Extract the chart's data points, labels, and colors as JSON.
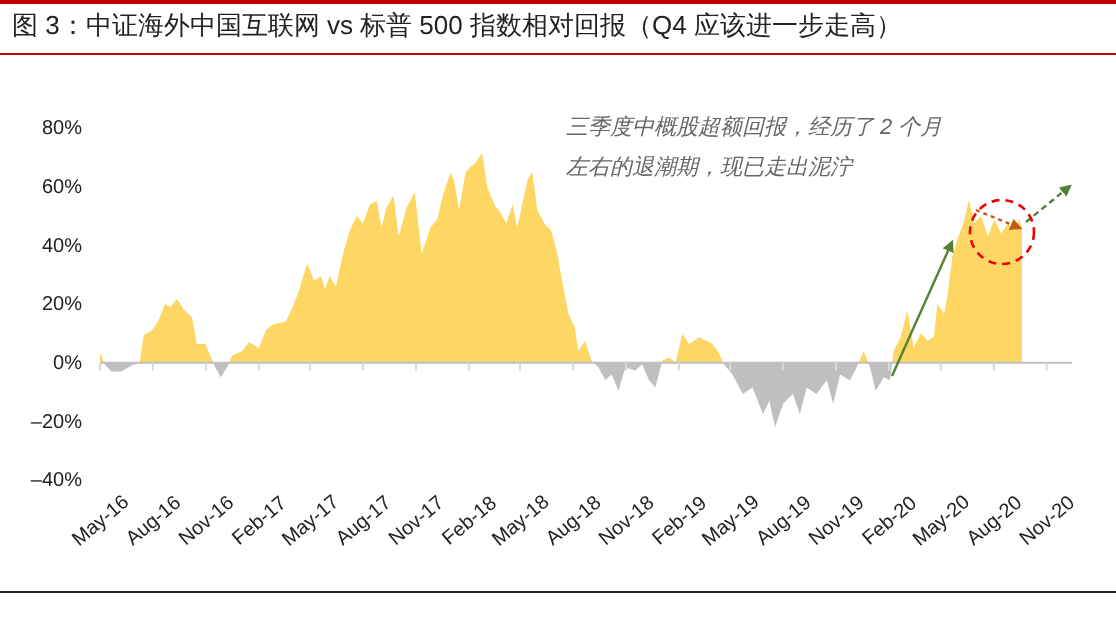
{
  "chart_data": {
    "type": "area",
    "title": "图 3：中证海外中国互联网 vs 标普 500 指数相对回报（Q4 应该进一步走高）",
    "annotations": [
      "三季度中概股超额回报，经历了 2 个月左右的退潮期，现已走出泥泞"
    ],
    "xlim": [
      "2016-05-01",
      "2020-12-15"
    ],
    "xticks": [
      {
        "value": "2016-05-01",
        "label": "May-16"
      },
      {
        "value": "2016-08-01",
        "label": "Aug-16"
      },
      {
        "value": "2016-11-01",
        "label": "Nov-16"
      },
      {
        "value": "2017-02-01",
        "label": "Feb-17"
      },
      {
        "value": "2017-05-01",
        "label": "May-17"
      },
      {
        "value": "2017-08-01",
        "label": "Aug-17"
      },
      {
        "value": "2017-11-01",
        "label": "Nov-17"
      },
      {
        "value": "2018-02-01",
        "label": "Feb-18"
      },
      {
        "value": "2018-05-01",
        "label": "May-18"
      },
      {
        "value": "2018-08-01",
        "label": "Aug-18"
      },
      {
        "value": "2018-11-01",
        "label": "Nov-18"
      },
      {
        "value": "2019-02-01",
        "label": "Feb-19"
      },
      {
        "value": "2019-05-01",
        "label": "May-19"
      },
      {
        "value": "2019-08-01",
        "label": "Aug-19"
      },
      {
        "value": "2019-11-01",
        "label": "Nov-19"
      },
      {
        "value": "2020-02-01",
        "label": "Feb-20"
      },
      {
        "value": "2020-05-01",
        "label": "May-20"
      },
      {
        "value": "2020-08-01",
        "label": "Aug-20"
      },
      {
        "value": "2020-11-01",
        "label": "Nov-20"
      }
    ],
    "ylim": [
      -40,
      80
    ],
    "yticks": [
      {
        "value": -40,
        "label": "–40%"
      },
      {
        "value": -20,
        "label": "–20%"
      },
      {
        "value": 0,
        "label": "0%"
      },
      {
        "value": 20,
        "label": "20%"
      },
      {
        "value": 40,
        "label": "40%"
      },
      {
        "value": 60,
        "label": "60%"
      },
      {
        "value": 80,
        "label": "80%"
      }
    ],
    "x": [
      "2016-05-01",
      "2016-05-09",
      "2016-05-21",
      "2016-06-07",
      "2016-06-25",
      "2016-07-09",
      "2016-07-16",
      "2016-07-30",
      "2016-08-10",
      "2016-08-22",
      "2016-08-31",
      "2016-09-12",
      "2016-09-24",
      "2016-10-08",
      "2016-10-16",
      "2016-10-31",
      "2016-11-09",
      "2016-11-17",
      "2016-11-27",
      "2016-12-08",
      "2016-12-17",
      "2017-01-03",
      "2017-01-15",
      "2017-02-01",
      "2017-02-13",
      "2017-02-25",
      "2017-03-20",
      "2017-04-01",
      "2017-04-12",
      "2017-04-26",
      "2017-05-08",
      "2017-05-20",
      "2017-05-27",
      "2017-06-04",
      "2017-06-15",
      "2017-06-27",
      "2017-07-09",
      "2017-07-21",
      "2017-08-01",
      "2017-08-13",
      "2017-08-25",
      "2017-09-02",
      "2017-09-11",
      "2017-09-23",
      "2017-10-02",
      "2017-10-16",
      "2017-10-30",
      "2017-11-11",
      "2017-11-26",
      "2017-12-08",
      "2017-12-19",
      "2017-12-31",
      "2018-01-06",
      "2018-01-15",
      "2018-01-26",
      "2018-02-04",
      "2018-02-12",
      "2018-02-24",
      "2018-03-05",
      "2018-03-17",
      "2018-03-28",
      "2018-04-07",
      "2018-04-18",
      "2018-04-26",
      "2018-05-14",
      "2018-05-22",
      "2018-05-31",
      "2018-06-12",
      "2018-06-24",
      "2018-07-05",
      "2018-07-11",
      "2018-07-24",
      "2018-08-04",
      "2018-08-10",
      "2018-08-22",
      "2018-09-02",
      "2018-09-14",
      "2018-09-26",
      "2018-10-07",
      "2018-10-19",
      "2018-10-31",
      "2018-11-17",
      "2018-11-29",
      "2018-12-11",
      "2018-12-22",
      "2019-01-03",
      "2019-01-15",
      "2019-01-26",
      "2019-02-07",
      "2019-02-19",
      "2019-03-08",
      "2019-03-20",
      "2019-03-31",
      "2019-04-12",
      "2019-04-20",
      "2019-05-05",
      "2019-05-23",
      "2019-06-09",
      "2019-06-27",
      "2019-07-08",
      "2019-07-18",
      "2019-08-01",
      "2019-08-18",
      "2019-08-30",
      "2019-09-11",
      "2019-09-28",
      "2019-10-16",
      "2019-10-27",
      "2019-11-08",
      "2019-11-25",
      "2019-12-07",
      "2019-12-19",
      "2019-12-30",
      "2020-01-09",
      "2020-01-23",
      "2020-02-03",
      "2020-02-09",
      "2020-02-21",
      "2020-03-04",
      "2020-03-15",
      "2020-03-27",
      "2020-04-08",
      "2020-04-19",
      "2020-04-25",
      "2020-05-07",
      "2020-05-13",
      "2020-05-21",
      "2020-05-30",
      "2020-06-11",
      "2020-06-19",
      "2020-06-28",
      "2020-07-10",
      "2020-07-22",
      "2020-08-02",
      "2020-08-14",
      "2020-08-26",
      "2020-09-06",
      "2020-09-14",
      "2020-09-19"
    ],
    "series": [
      {
        "color": "#fdd663",
        "values": [
          3.4,
          -0.5,
          -3,
          -3,
          -1,
          0,
          9.4,
          11,
          14,
          20,
          19,
          21.7,
          18,
          15.5,
          6.4,
          6.4,
          2.3,
          -1.6,
          -5,
          -1.6,
          2.5,
          4,
          7,
          5,
          11,
          13,
          14,
          19,
          24.7,
          33.8,
          28,
          29.5,
          25,
          29.5,
          26,
          37,
          45,
          50,
          47.5,
          54,
          55,
          46,
          53,
          57,
          43,
          53,
          58,
          37,
          46,
          49,
          58,
          64.7,
          62.4,
          52,
          64.7,
          67,
          68,
          71.5,
          60,
          54,
          51,
          47.5,
          54,
          46,
          62.4,
          65,
          52,
          47.5,
          45,
          37,
          30,
          16.7,
          12,
          4,
          7.5,
          0.7,
          -1.6,
          -6,
          -4,
          -9.6,
          -1.6,
          -2.7,
          -0.5,
          -6,
          -8.5,
          0.7,
          1.8,
          0,
          9.8,
          6.4,
          8.7,
          7.5,
          6.4,
          3,
          -0.5,
          -4,
          -10.7,
          -8.5,
          -17.6,
          -13,
          -22,
          -14,
          -10.7,
          -17.6,
          -8.5,
          -10.7,
          -6,
          -14,
          -4,
          -6,
          -1.6,
          4,
          -1.6,
          -9.6,
          -5,
          -6,
          4,
          8.7,
          17.8,
          5,
          10,
          7.5,
          8.7,
          20,
          16.7,
          23.5,
          36,
          42,
          48.7,
          55.5,
          47.5,
          50,
          43,
          48.7,
          44,
          47.5,
          45,
          48.7,
          46
        ]
      }
    ]
  }
}
